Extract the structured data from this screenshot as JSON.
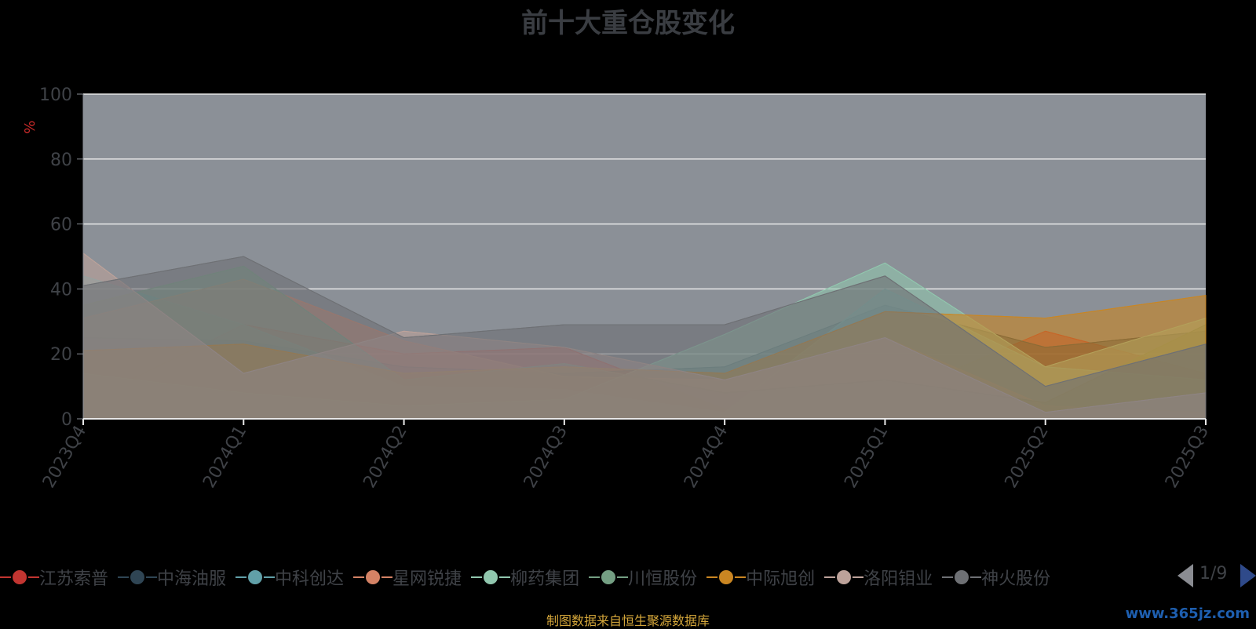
{
  "chart_data": {
    "type": "area",
    "stacked": false,
    "title": "前十大重仓股变化",
    "ylabel": "%",
    "ylim": [
      0,
      100
    ],
    "yticks": [
      0,
      20,
      40,
      60,
      80,
      100
    ],
    "grid": true,
    "legend_position": "bottom",
    "categories": [
      "2023Q4",
      "2024Q1",
      "2024Q2",
      "2024Q3",
      "2024Q4",
      "2025Q1",
      "2025Q2",
      "2025Q3"
    ],
    "series": [
      {
        "name": "江苏索普",
        "color": "#c23531",
        "values": [
          5,
          29,
          20,
          22,
          3,
          6,
          27,
          14
        ]
      },
      {
        "name": "中海油服",
        "color": "#2f4554",
        "values": [
          25,
          24,
          16,
          14,
          16,
          35,
          22,
          27
        ]
      },
      {
        "name": "中科创达",
        "color": "#61a0a8",
        "values": [
          44,
          29,
          10,
          9,
          2,
          40,
          16,
          12
        ]
      },
      {
        "name": "星网锐捷",
        "color": "#d48265",
        "values": [
          31,
          43,
          24,
          13,
          12,
          25,
          4,
          2
        ]
      },
      {
        "name": "柳药集团",
        "color": "#91c7ae",
        "values": [
          14,
          8,
          4,
          6,
          26,
          48,
          16,
          31
        ]
      },
      {
        "name": "川恒股份",
        "color": "#749f83",
        "values": [
          35,
          47,
          12,
          17,
          8,
          12,
          5,
          29
        ]
      },
      {
        "name": "中际旭创",
        "color": "#ca8622",
        "values": [
          21,
          23,
          14,
          16,
          14,
          33,
          31,
          38
        ]
      },
      {
        "name": "洛阳钼业",
        "color": "#bda29a",
        "values": [
          51,
          14,
          27,
          22,
          12,
          25,
          2,
          8
        ]
      },
      {
        "name": "神火股份",
        "color": "#6e7074",
        "values": [
          41,
          50,
          25,
          29,
          29,
          44,
          10,
          23
        ]
      }
    ]
  },
  "legend": {
    "pager_text": "1/9"
  },
  "footer": {
    "source_note": "制图数据来自恒生聚源数据库",
    "watermark": "www.365jz.com"
  }
}
